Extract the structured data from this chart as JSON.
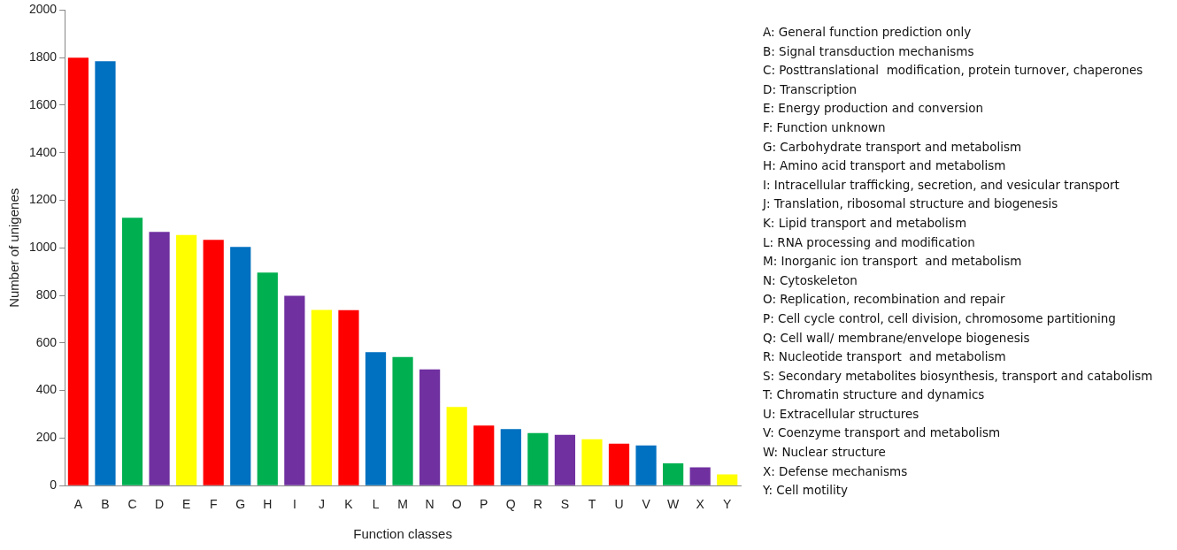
{
  "chart_data": {
    "type": "bar",
    "xlabel": "Function classes",
    "ylabel": "Number of unigenes",
    "categories": [
      "A",
      "B",
      "C",
      "D",
      "E",
      "F",
      "G",
      "H",
      "I",
      "J",
      "K",
      "L",
      "M",
      "N",
      "O",
      "P",
      "Q",
      "R",
      "S",
      "T",
      "U",
      "V",
      "W",
      "X",
      "Y"
    ],
    "values": [
      1800,
      1785,
      1127,
      1067,
      1054,
      1034,
      1004,
      896,
      798,
      739,
      738,
      561,
      541,
      489,
      331,
      253,
      238,
      221,
      214,
      195,
      176,
      169,
      94,
      77,
      47
    ],
    "colors": [
      "#ff0000",
      "#0070c0",
      "#00b050",
      "#7030a0",
      "#ffff00",
      "#ff0000",
      "#0070c0",
      "#00b050",
      "#7030a0",
      "#ffff00",
      "#ff0000",
      "#0070c0",
      "#00b050",
      "#7030a0",
      "#ffff00",
      "#ff0000",
      "#0070c0",
      "#00b050",
      "#7030a0",
      "#ffff00",
      "#ff0000",
      "#0070c0",
      "#00b050",
      "#7030a0",
      "#ffff00"
    ],
    "ylim": [
      0,
      2000
    ],
    "yticks": [
      0,
      200,
      400,
      600,
      800,
      1000,
      1200,
      1400,
      1600,
      1800,
      2000
    ],
    "grid": false,
    "legend": false,
    "annotations": [
      "A: General function prediction only",
      "B: Signal transduction mechanisms",
      "C: Posttranslational  modification, protein turnover, chaperones",
      "D: Transcription",
      "E: Energy production and conversion",
      "F: Function unknown",
      "G: Carbohydrate transport and metabolism",
      "H: Amino acid transport and metabolism",
      "I: Intracellular trafficking, secretion, and vesicular transport",
      "J: Translation, ribosomal structure and biogenesis",
      "K: Lipid transport and metabolism",
      "L: RNA processing and modification",
      "M: Inorganic ion transport  and metabolism",
      "N: Cytoskeleton",
      "O: Replication, recombination and repair",
      "P: Cell cycle control, cell division, chromosome partitioning",
      "Q: Cell wall/ membrane/envelope biogenesis",
      "R: Nucleotide transport  and metabolism",
      "S: Secondary metabolites biosynthesis, transport and catabolism",
      "T: Chromatin structure and dynamics",
      "U: Extracellular structures",
      "V: Coenzyme transport and metabolism",
      "W: Nuclear structure",
      "X: Defense mechanisms",
      "Y: Cell motility"
    ]
  }
}
